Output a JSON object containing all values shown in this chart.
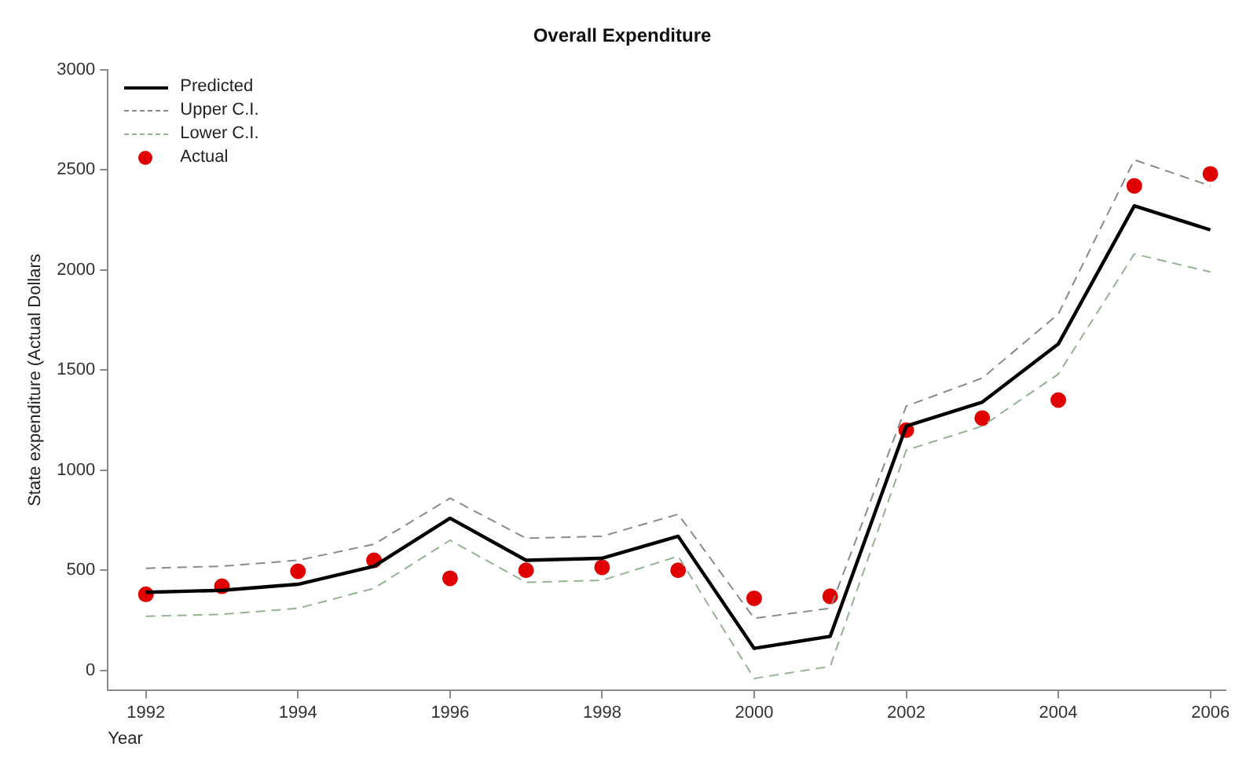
{
  "chart_data": {
    "type": "line",
    "title": "Overall Expenditure",
    "xlabel": "Year",
    "ylabel": "State expenditure (Actual Dollars",
    "x": [
      1992,
      1993,
      1994,
      1995,
      1996,
      1997,
      1998,
      1999,
      2000,
      2001,
      2002,
      2003,
      2004,
      2005,
      2006
    ],
    "series": [
      {
        "name": "Predicted",
        "color": "#000000",
        "line_style": "solid",
        "marker": "none",
        "values": [
          390,
          400,
          430,
          520,
          760,
          550,
          560,
          670,
          110,
          170,
          1220,
          1340,
          1630,
          2320,
          2200
        ]
      },
      {
        "name": "Upper C.I.",
        "color": "#8a8a8a",
        "line_style": "dashed",
        "marker": "none",
        "values": [
          510,
          520,
          550,
          630,
          860,
          660,
          670,
          780,
          260,
          310,
          1320,
          1460,
          1780,
          2550,
          2420
        ]
      },
      {
        "name": "Lower C.I.",
        "color": "#93b393",
        "line_style": "dashed",
        "marker": "none",
        "values": [
          270,
          280,
          310,
          410,
          650,
          440,
          450,
          570,
          -40,
          20,
          1100,
          1220,
          1480,
          2080,
          1990
        ]
      },
      {
        "name": "Actual",
        "type": "scatter",
        "color": "#e00000",
        "marker": "circle",
        "values": [
          380,
          420,
          495,
          550,
          460,
          500,
          515,
          500,
          360,
          370,
          1200,
          1260,
          1350,
          2420,
          2480
        ]
      }
    ],
    "xlim": [
      1991.5,
      2006.2
    ],
    "xticks": [
      1992,
      1994,
      1996,
      1998,
      2000,
      2002,
      2004,
      2006
    ],
    "ylim": [
      -100,
      3000
    ],
    "yticks": [
      0,
      500,
      1000,
      1500,
      2000,
      2500,
      3000
    ],
    "grid": false,
    "legend": "top left"
  }
}
